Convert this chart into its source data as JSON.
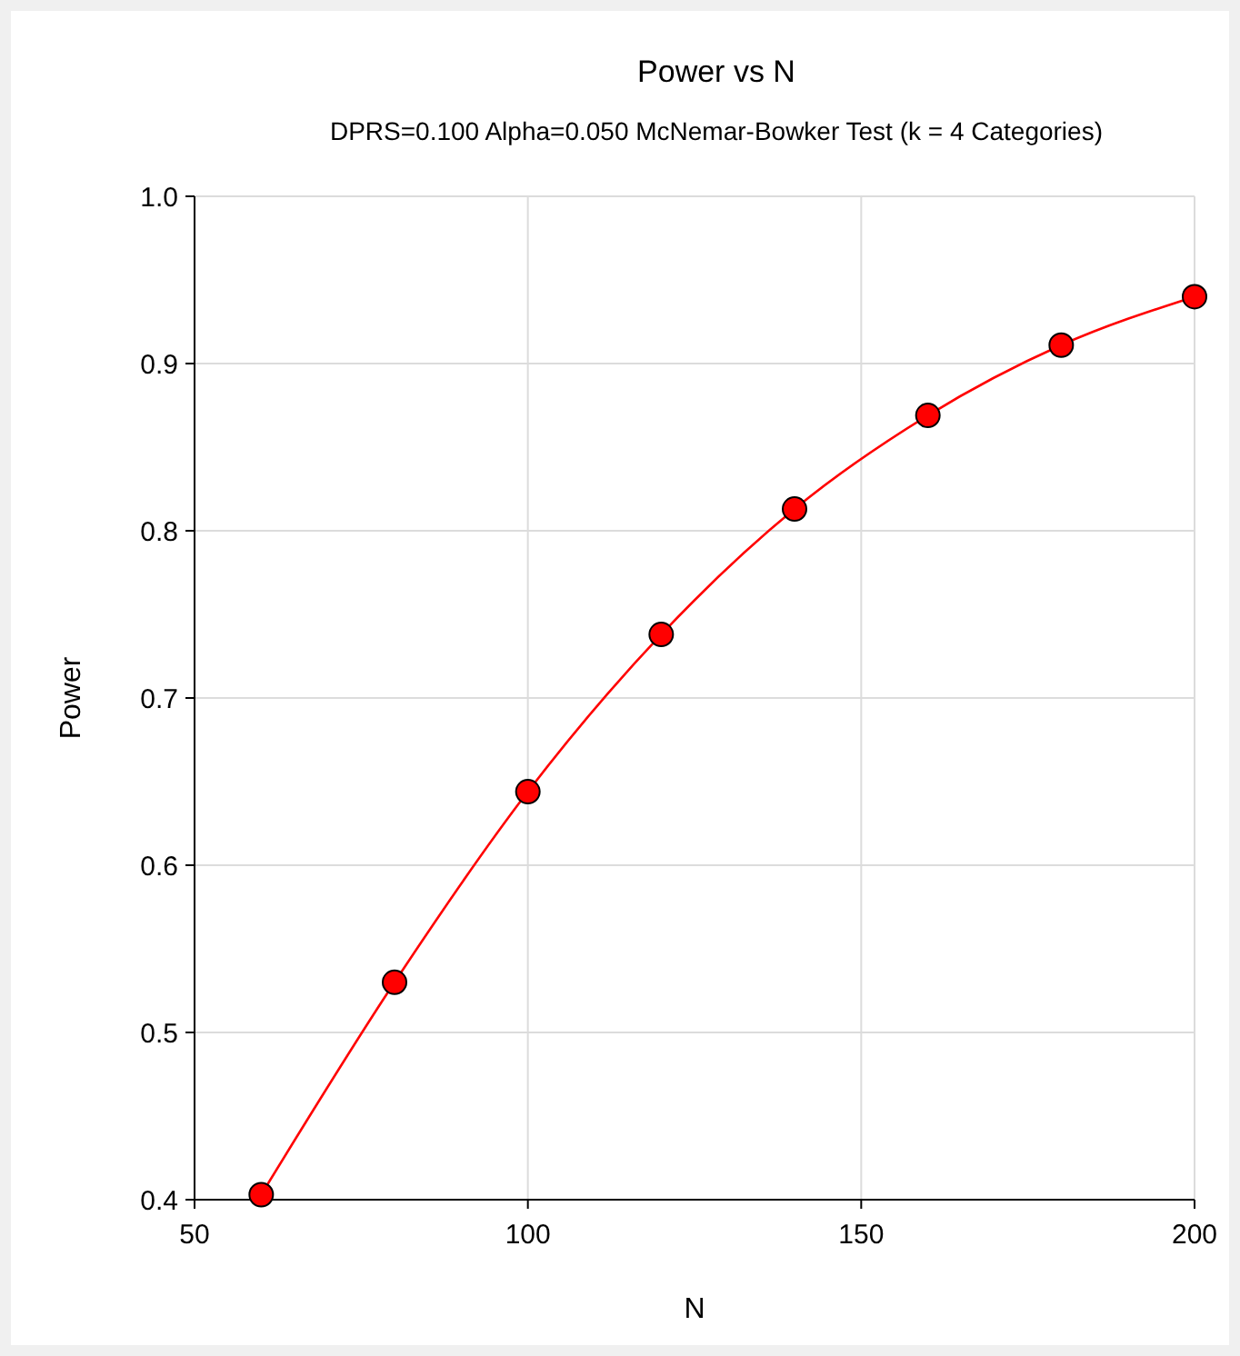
{
  "chart_data": {
    "type": "line",
    "title": "Power vs N",
    "subtitle": "DPRS=0.100 Alpha=0.050 McNemar-Bowker Test (k = 4 Categories)",
    "xlabel": "N",
    "ylabel": "Power",
    "x": [
      60,
      80,
      100,
      120,
      140,
      160,
      180,
      200
    ],
    "series": [
      {
        "color": "#ff0000",
        "values": [
          0.403,
          0.53,
          0.644,
          0.738,
          0.813,
          0.869,
          0.911,
          0.94
        ]
      }
    ],
    "xlim": [
      50,
      200
    ],
    "xticks": [
      50,
      100,
      150,
      200
    ],
    "ylim": [
      0.4,
      1.0
    ],
    "yticks": [
      {
        "value": 0.4,
        "label": "0.4"
      },
      {
        "value": 0.5,
        "label": "0.5"
      },
      {
        "value": 0.6,
        "label": "0.6"
      },
      {
        "value": 0.7,
        "label": "0.7"
      },
      {
        "value": 0.8,
        "label": "0.8"
      },
      {
        "value": 0.9,
        "label": "0.9"
      },
      {
        "value": 1.0,
        "label": "1.0"
      }
    ],
    "grid": true,
    "marker": "circle",
    "line_style": "solid"
  }
}
